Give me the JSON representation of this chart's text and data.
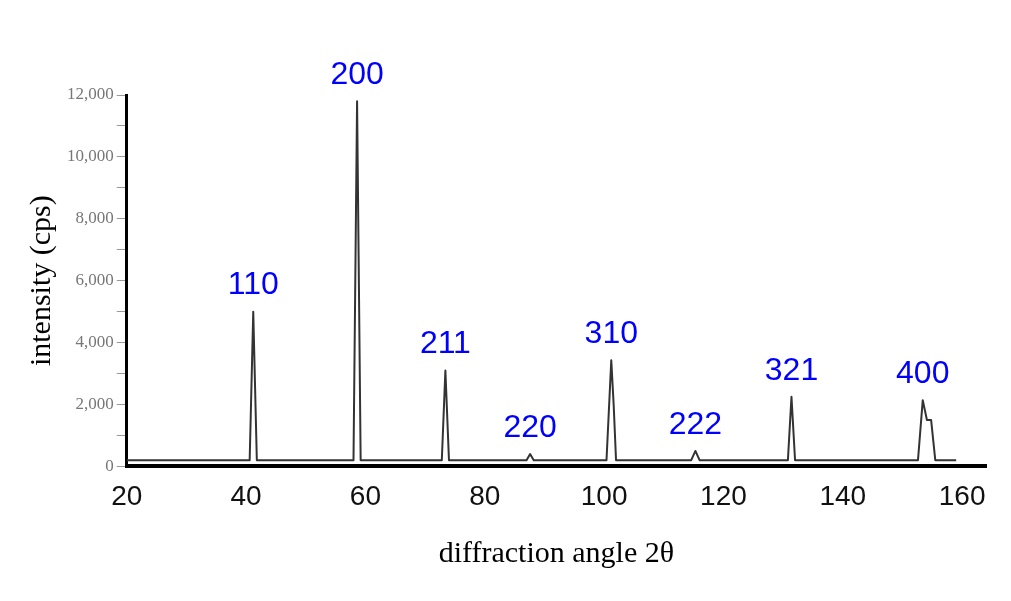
{
  "chart_data": {
    "type": "line",
    "xlabel": "diffraction angle 2θ",
    "ylabel": "intensity (cps)",
    "x": [
      20,
      40.6,
      41.2,
      41.8,
      58.0,
      58.6,
      59.2,
      72.8,
      73.4,
      74.0,
      87.0,
      87.6,
      88.2,
      100.4,
      101.2,
      101.6,
      102.0,
      114.6,
      115.3,
      116.0,
      130.8,
      131.4,
      132.0,
      152.6,
      153.4,
      154.1,
      154.8,
      155.5,
      159
    ],
    "series": [
      {
        "color": "#333333",
        "values": [
          200,
          200,
          5000,
          200,
          200,
          11800,
          200,
          200,
          3100,
          200,
          200,
          400,
          200,
          200,
          3430,
          2000,
          200,
          200,
          500,
          200,
          200,
          2250,
          200,
          200,
          2140,
          1500,
          1500,
          200,
          200
        ]
      }
    ],
    "xlim": [
      20,
      164
    ],
    "xticks": [
      20,
      40,
      60,
      80,
      100,
      120,
      140,
      160
    ],
    "ylim": [
      0,
      12000
    ],
    "yticks": [
      {
        "value": 0,
        "label": "0"
      },
      {
        "value": 1000,
        "label": null
      },
      {
        "value": 2000,
        "label": "2,000"
      },
      {
        "value": 3000,
        "label": null
      },
      {
        "value": 4000,
        "label": "4,000"
      },
      {
        "value": 5000,
        "label": null
      },
      {
        "value": 6000,
        "label": "6,000"
      },
      {
        "value": 7000,
        "label": null
      },
      {
        "value": 8000,
        "label": "8,000"
      },
      {
        "value": 9000,
        "label": null
      },
      {
        "value": 10000,
        "label": "10,000"
      },
      {
        "value": 11000,
        "label": null
      },
      {
        "value": 12000,
        "label": "12,000"
      }
    ],
    "annotations": [
      {
        "text": "110",
        "x": 41.2,
        "y": 5000
      },
      {
        "text": "200",
        "x": 58.6,
        "y": 11800
      },
      {
        "text": "211",
        "x": 73.4,
        "y": 3100
      },
      {
        "text": "220",
        "x": 87.6,
        "y": 400
      },
      {
        "text": "310",
        "x": 101.2,
        "y": 3430
      },
      {
        "text": "222",
        "x": 115.3,
        "y": 500
      },
      {
        "text": "321",
        "x": 131.4,
        "y": 2250
      },
      {
        "text": "400",
        "x": 153.4,
        "y": 2140
      }
    ],
    "grid": false,
    "legend": false,
    "marker": "none",
    "line_style": "solid"
  }
}
